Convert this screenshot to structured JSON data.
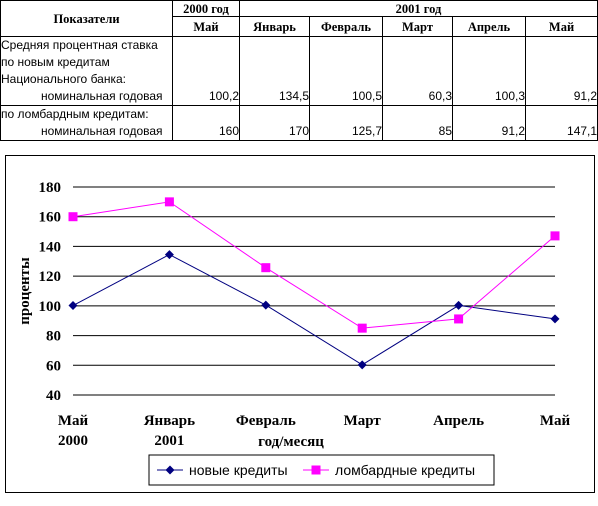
{
  "table": {
    "indicator_header": "Показатели",
    "year_headers": [
      "2000 год",
      "2001 год"
    ],
    "months": [
      "Май",
      "Январь",
      "Февраль",
      "Март",
      "Апрель",
      "Май"
    ],
    "rows": [
      {
        "label_lines": [
          "Средняя процентная ставка",
          "по новым кредитам",
          "Национального банка:"
        ],
        "sub_label": "номинальная годовая",
        "values": [
          "100,2",
          "134,5",
          "100,5",
          "60,3",
          "100,3",
          "91,2"
        ]
      },
      {
        "label_lines": [
          "по ломбардным кредитам:"
        ],
        "sub_label": "номинальная годовая",
        "values": [
          "160",
          "170",
          "125,7",
          "85",
          "91,2",
          "147,1"
        ]
      }
    ]
  },
  "chart_data": {
    "type": "line",
    "categories": [
      [
        "Май",
        "2000"
      ],
      [
        "Январь",
        "2001"
      ],
      [
        "Февраль"
      ],
      [
        "Март"
      ],
      [
        "Апрель"
      ],
      [
        "Май"
      ]
    ],
    "series": [
      {
        "name": "новые кредиты",
        "values": [
          100.2,
          134.5,
          100.5,
          60.3,
          100.3,
          91.2
        ],
        "color": "#000080",
        "marker": "diamond"
      },
      {
        "name": "ломбардные кредиты",
        "values": [
          160,
          170,
          125.7,
          85,
          91.2,
          147.1
        ],
        "color": "#ff00ff",
        "marker": "square"
      }
    ],
    "xlabel": "год/месяц",
    "ylabel": "проценты",
    "ylim": [
      40,
      180
    ],
    "yticks": [
      40,
      60,
      80,
      100,
      120,
      140,
      160,
      180
    ],
    "grid": true,
    "legend_position": "bottom"
  }
}
